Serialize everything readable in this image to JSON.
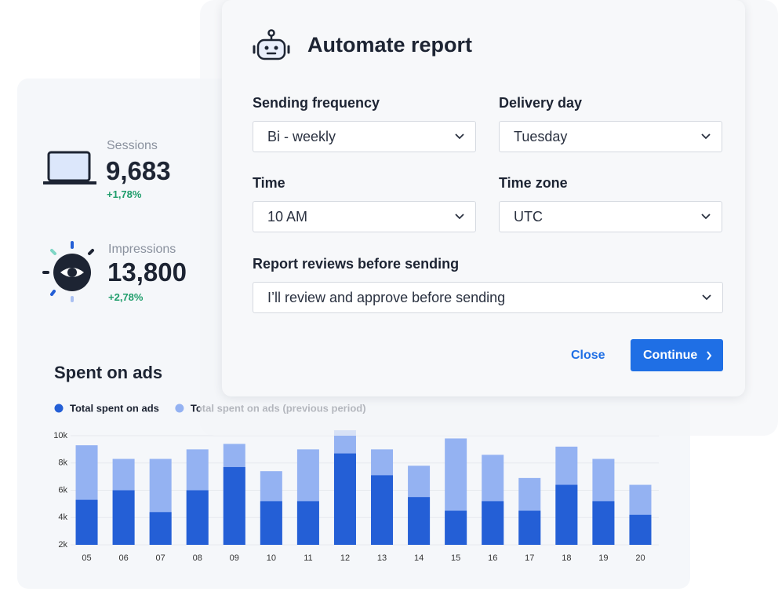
{
  "stats": [
    {
      "label": "Sessions",
      "value": "9,683",
      "change": "+1,78%"
    },
    {
      "label": "Impressions",
      "value": "13,800",
      "change": "+2,78%"
    }
  ],
  "modal": {
    "title": "Automate report",
    "fields": [
      {
        "label": "Sending frequency",
        "value": "Bi - weekly"
      },
      {
        "label": "Delivery day",
        "value": "Tuesday"
      },
      {
        "label": "Time",
        "value": "10 AM"
      },
      {
        "label": "Time zone",
        "value": "UTC"
      },
      {
        "label": "Report reviews before sending",
        "value": "I’ll review and approve before sending"
      }
    ],
    "close": "Close",
    "continue": "Continue"
  },
  "chart_data": {
    "type": "bar",
    "title": "Spent on ads",
    "categories": [
      "05",
      "06",
      "07",
      "08",
      "09",
      "10",
      "11",
      "12",
      "13",
      "14",
      "15",
      "16",
      "17",
      "18",
      "19",
      "20"
    ],
    "series": [
      {
        "name": "Total spent on ads (previous period)",
        "color": "#94b2f2",
        "values": [
          9300,
          8300,
          8300,
          9000,
          9400,
          7400,
          9000,
          10400,
          9000,
          7800,
          9800,
          8600,
          6900,
          9200,
          8300,
          6400
        ]
      },
      {
        "name": "Total spent on ads",
        "color": "#245fd6",
        "values": [
          5300,
          6000,
          4400,
          6000,
          7700,
          5200,
          5200,
          8700,
          7100,
          5500,
          4500,
          5200,
          4500,
          6400,
          5200,
          4200
        ]
      }
    ],
    "ylim": [
      2000,
      10000
    ],
    "yticks": [
      {
        "value": 2000,
        "label": "2k"
      },
      {
        "value": 4000,
        "label": "4k"
      },
      {
        "value": 6000,
        "label": "6k"
      },
      {
        "value": 8000,
        "label": "8k"
      },
      {
        "value": 10000,
        "label": "10k"
      }
    ],
    "grid": true
  }
}
